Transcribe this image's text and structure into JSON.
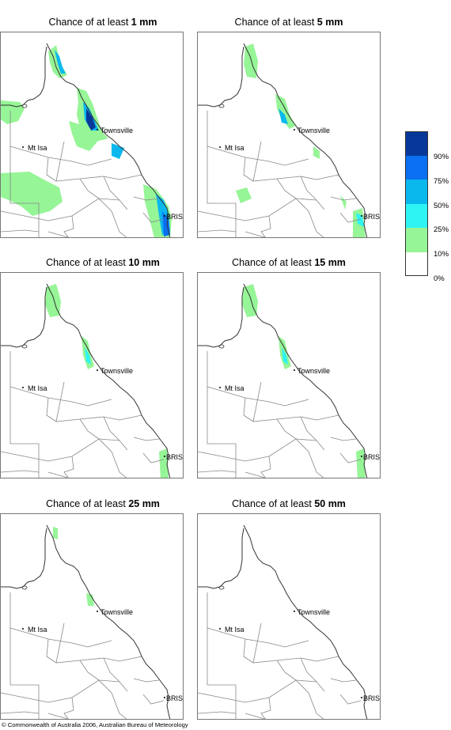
{
  "title_prefix": "Chance of at least",
  "panels": [
    {
      "amount": "1 mm",
      "coverage": "high"
    },
    {
      "amount": "5 mm",
      "coverage": "medium"
    },
    {
      "amount": "10 mm",
      "coverage": "low"
    },
    {
      "amount": "15 mm",
      "coverage": "low"
    },
    {
      "amount": "25 mm",
      "coverage": "minimal"
    },
    {
      "amount": "50 mm",
      "coverage": "none"
    }
  ],
  "places": {
    "townsville": "Townsville",
    "mt_isa": "Mt Isa",
    "brisbane": "BRIS"
  },
  "legend": {
    "levels": [
      "90%",
      "75%",
      "50%",
      "25%",
      "10%",
      "0%"
    ],
    "colors": [
      "#06389a",
      "#0a6ff0",
      "#0ab8ee",
      "#2ef4f4",
      "#96f596",
      "#ffffff"
    ]
  },
  "footer": "© Commonwealth of Australia 2006, Australian Bureau of Meteorology"
}
